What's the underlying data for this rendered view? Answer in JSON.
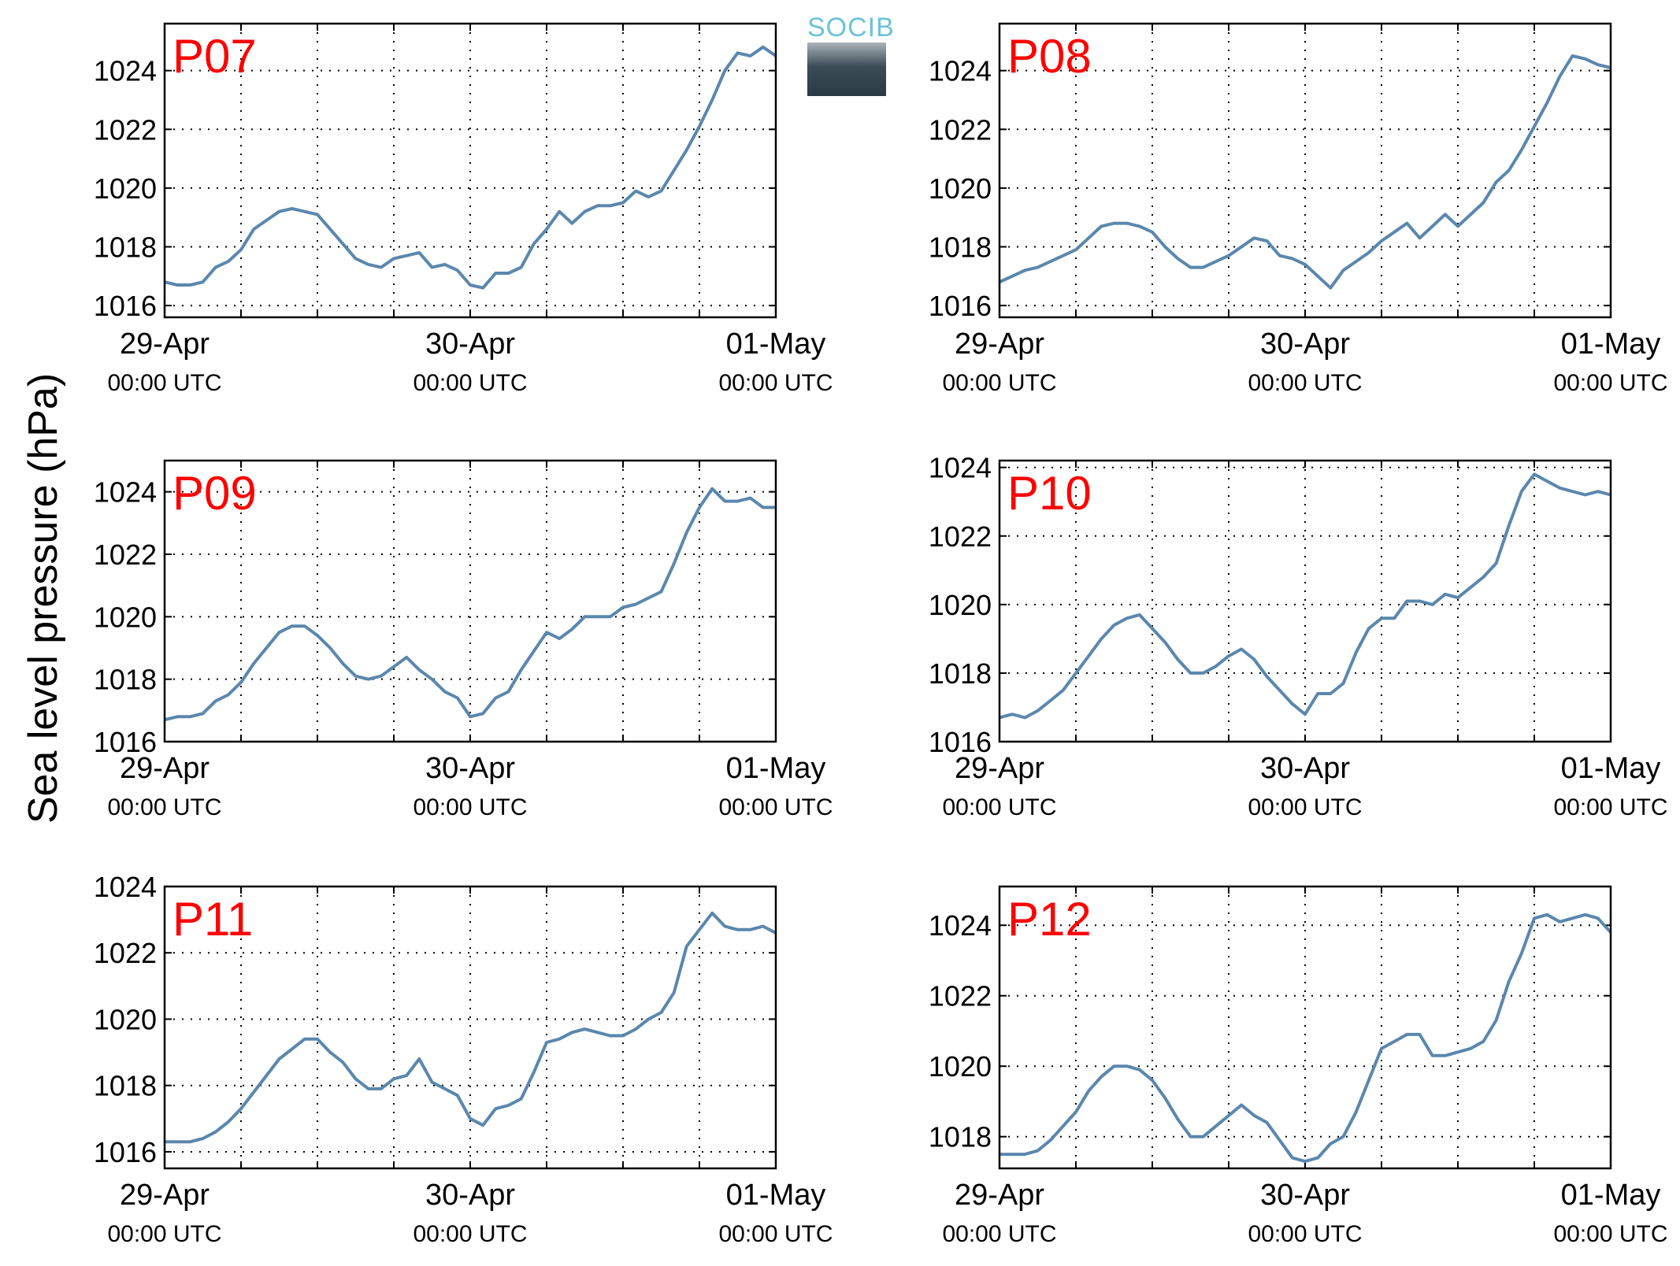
{
  "figure": {
    "ylabel": "Sea level pressure (hPa)",
    "logo_text": "SOCIB",
    "colors": {
      "line": "#5b87ad",
      "panel_label": "#ff0000",
      "grid": "#000000",
      "axes": "#000000"
    }
  },
  "chart_data": [
    {
      "type": "line",
      "title": "P07",
      "xticks": [
        "29-Apr|00:00 UTC",
        "30-Apr|00:00 UTC",
        "01-May|00:00 UTC"
      ],
      "xlim_hours": [
        0,
        48
      ],
      "x_units": "hours since 29-Apr 00:00 UTC",
      "ylim": [
        1015.6,
        1025.6
      ],
      "yticks": [
        1016,
        1018,
        1020,
        1022,
        1024
      ],
      "grid": true,
      "series": [
        {
          "x": [
            0,
            1,
            2,
            3,
            4,
            5,
            6,
            7,
            8,
            9,
            10,
            11,
            12,
            13,
            14,
            15,
            16,
            17,
            18,
            19,
            20,
            21,
            22,
            23,
            24,
            25,
            26,
            27,
            28,
            29,
            30,
            31,
            32,
            33,
            34,
            35,
            36,
            37,
            38,
            39,
            40,
            41,
            42,
            43,
            44,
            45,
            46,
            47,
            48
          ],
          "values": [
            1016.8,
            1016.7,
            1016.7,
            1016.8,
            1017.3,
            1017.5,
            1017.9,
            1018.6,
            1018.9,
            1019.2,
            1019.3,
            1019.2,
            1019.1,
            1018.6,
            1018.1,
            1017.6,
            1017.4,
            1017.3,
            1017.6,
            1017.7,
            1017.8,
            1017.3,
            1017.4,
            1017.2,
            1016.7,
            1016.6,
            1017.1,
            1017.1,
            1017.3,
            1018.1,
            1018.6,
            1019.2,
            1018.8,
            1019.2,
            1019.4,
            1019.4,
            1019.5,
            1019.9,
            1019.7,
            1019.9,
            1020.6,
            1021.3,
            1022.1,
            1023.0,
            1024.0,
            1024.6,
            1024.5,
            1024.8,
            1024.5
          ]
        }
      ]
    },
    {
      "type": "line",
      "title": "P08",
      "xticks": [
        "29-Apr|00:00 UTC",
        "30-Apr|00:00 UTC",
        "01-May|00:00 UTC"
      ],
      "xlim_hours": [
        0,
        48
      ],
      "x_units": "hours since 29-Apr 00:00 UTC",
      "ylim": [
        1015.6,
        1025.6
      ],
      "yticks": [
        1016,
        1018,
        1020,
        1022,
        1024
      ],
      "grid": true,
      "series": [
        {
          "x": [
            0,
            1,
            2,
            3,
            4,
            5,
            6,
            7,
            8,
            9,
            10,
            11,
            12,
            13,
            14,
            15,
            16,
            17,
            18,
            19,
            20,
            21,
            22,
            23,
            24,
            25,
            26,
            27,
            28,
            29,
            30,
            31,
            32,
            33,
            34,
            35,
            36,
            37,
            38,
            39,
            40,
            41,
            42,
            43,
            44,
            45,
            46,
            47,
            48
          ],
          "values": [
            1016.8,
            1017.0,
            1017.2,
            1017.3,
            1017.5,
            1017.7,
            1017.9,
            1018.3,
            1018.7,
            1018.8,
            1018.8,
            1018.7,
            1018.5,
            1018.0,
            1017.6,
            1017.3,
            1017.3,
            1017.5,
            1017.7,
            1018.0,
            1018.3,
            1018.2,
            1017.7,
            1017.6,
            1017.4,
            1017.0,
            1016.6,
            1017.2,
            1017.5,
            1017.8,
            1018.2,
            1018.5,
            1018.8,
            1018.3,
            1018.7,
            1019.1,
            1018.7,
            1019.1,
            1019.5,
            1020.2,
            1020.6,
            1021.3,
            1022.1,
            1022.9,
            1023.8,
            1024.5,
            1024.4,
            1024.2,
            1024.1
          ]
        }
      ]
    },
    {
      "type": "line",
      "title": "P09",
      "xticks": [
        "29-Apr|00:00 UTC",
        "30-Apr|00:00 UTC",
        "01-May|00:00 UTC"
      ],
      "xlim_hours": [
        0,
        48
      ],
      "x_units": "hours since 29-Apr 00:00 UTC",
      "ylim": [
        1016,
        1025
      ],
      "yticks": [
        1016,
        1018,
        1020,
        1022,
        1024
      ],
      "grid": true,
      "series": [
        {
          "x": [
            0,
            1,
            2,
            3,
            4,
            5,
            6,
            7,
            8,
            9,
            10,
            11,
            12,
            13,
            14,
            15,
            16,
            17,
            18,
            19,
            20,
            21,
            22,
            23,
            24,
            25,
            26,
            27,
            28,
            29,
            30,
            31,
            32,
            33,
            34,
            35,
            36,
            37,
            38,
            39,
            40,
            41,
            42,
            43,
            44,
            45,
            46,
            47,
            48
          ],
          "values": [
            1016.7,
            1016.8,
            1016.8,
            1016.9,
            1017.3,
            1017.5,
            1017.9,
            1018.5,
            1019.0,
            1019.5,
            1019.7,
            1019.7,
            1019.4,
            1019.0,
            1018.5,
            1018.1,
            1018.0,
            1018.1,
            1018.4,
            1018.7,
            1018.3,
            1018.0,
            1017.6,
            1017.4,
            1016.8,
            1016.9,
            1017.4,
            1017.6,
            1018.3,
            1018.9,
            1019.5,
            1019.3,
            1019.6,
            1020.0,
            1020.0,
            1020.0,
            1020.3,
            1020.4,
            1020.6,
            1020.8,
            1021.7,
            1022.7,
            1023.5,
            1024.1,
            1023.7,
            1023.7,
            1023.8,
            1023.5,
            1023.5
          ]
        }
      ]
    },
    {
      "type": "line",
      "title": "P10",
      "xticks": [
        "29-Apr|00:00 UTC",
        "30-Apr|00:00 UTC",
        "01-May|00:00 UTC"
      ],
      "xlim_hours": [
        0,
        48
      ],
      "x_units": "hours since 29-Apr 00:00 UTC",
      "ylim": [
        1016,
        1024.2
      ],
      "yticks": [
        1016,
        1018,
        1020,
        1022,
        1024
      ],
      "grid": true,
      "series": [
        {
          "x": [
            0,
            1,
            2,
            3,
            4,
            5,
            6,
            7,
            8,
            9,
            10,
            11,
            12,
            13,
            14,
            15,
            16,
            17,
            18,
            19,
            20,
            21,
            22,
            23,
            24,
            25,
            26,
            27,
            28,
            29,
            30,
            31,
            32,
            33,
            34,
            35,
            36,
            37,
            38,
            39,
            40,
            41,
            42,
            43,
            44,
            45,
            46,
            47,
            48
          ],
          "values": [
            1016.7,
            1016.8,
            1016.7,
            1016.9,
            1017.2,
            1017.5,
            1018.0,
            1018.5,
            1019.0,
            1019.4,
            1019.6,
            1019.7,
            1019.3,
            1018.9,
            1018.4,
            1018.0,
            1018.0,
            1018.2,
            1018.5,
            1018.7,
            1018.4,
            1017.9,
            1017.5,
            1017.1,
            1016.8,
            1017.4,
            1017.4,
            1017.7,
            1018.6,
            1019.3,
            1019.6,
            1019.6,
            1020.1,
            1020.1,
            1020.0,
            1020.3,
            1020.2,
            1020.5,
            1020.8,
            1021.2,
            1022.3,
            1023.3,
            1023.8,
            1023.6,
            1023.4,
            1023.3,
            1023.2,
            1023.3,
            1023.2
          ]
        }
      ]
    },
    {
      "type": "line",
      "title": "P11",
      "xticks": [
        "29-Apr|00:00 UTC",
        "30-Apr|00:00 UTC",
        "01-May|00:00 UTC"
      ],
      "xlim_hours": [
        0,
        48
      ],
      "x_units": "hours since 29-Apr 00:00 UTC",
      "ylim": [
        1015.5,
        1024
      ],
      "yticks": [
        1016,
        1018,
        1020,
        1022,
        1024
      ],
      "grid": true,
      "series": [
        {
          "x": [
            0,
            1,
            2,
            3,
            4,
            5,
            6,
            7,
            8,
            9,
            10,
            11,
            12,
            13,
            14,
            15,
            16,
            17,
            18,
            19,
            20,
            21,
            22,
            23,
            24,
            25,
            26,
            27,
            28,
            29,
            30,
            31,
            32,
            33,
            34,
            35,
            36,
            37,
            38,
            39,
            40,
            41,
            42,
            43,
            44,
            45,
            46,
            47,
            48
          ],
          "values": [
            1016.3,
            1016.3,
            1016.3,
            1016.4,
            1016.6,
            1016.9,
            1017.3,
            1017.8,
            1018.3,
            1018.8,
            1019.1,
            1019.4,
            1019.4,
            1019.0,
            1018.7,
            1018.2,
            1017.9,
            1017.9,
            1018.2,
            1018.3,
            1018.8,
            1018.1,
            1017.9,
            1017.7,
            1017.0,
            1016.8,
            1017.3,
            1017.4,
            1017.6,
            1018.4,
            1019.3,
            1019.4,
            1019.6,
            1019.7,
            1019.6,
            1019.5,
            1019.5,
            1019.7,
            1020.0,
            1020.2,
            1020.8,
            1022.2,
            1022.7,
            1023.2,
            1022.8,
            1022.7,
            1022.7,
            1022.8,
            1022.6
          ]
        }
      ]
    },
    {
      "type": "line",
      "title": "P12",
      "xticks": [
        "29-Apr|00:00 UTC",
        "30-Apr|00:00 UTC",
        "01-May|00:00 UTC"
      ],
      "xlim_hours": [
        0,
        48
      ],
      "x_units": "hours since 29-Apr 00:00 UTC",
      "ylim": [
        1017.1,
        1025.1
      ],
      "yticks": [
        1018,
        1020,
        1022,
        1024
      ],
      "grid": true,
      "series": [
        {
          "x": [
            0,
            1,
            2,
            3,
            4,
            5,
            6,
            7,
            8,
            9,
            10,
            11,
            12,
            13,
            14,
            15,
            16,
            17,
            18,
            19,
            20,
            21,
            22,
            23,
            24,
            25,
            26,
            27,
            28,
            29,
            30,
            31,
            32,
            33,
            34,
            35,
            36,
            37,
            38,
            39,
            40,
            41,
            42,
            43,
            44,
            45,
            46,
            47,
            48
          ],
          "values": [
            1017.5,
            1017.5,
            1017.5,
            1017.6,
            1017.9,
            1018.3,
            1018.7,
            1019.3,
            1019.7,
            1020.0,
            1020.0,
            1019.9,
            1019.6,
            1019.1,
            1018.5,
            1018.0,
            1018.0,
            1018.3,
            1018.6,
            1018.9,
            1018.6,
            1018.4,
            1017.9,
            1017.4,
            1017.3,
            1017.4,
            1017.8,
            1018.0,
            1018.7,
            1019.6,
            1020.5,
            1020.7,
            1020.9,
            1020.9,
            1020.3,
            1020.3,
            1020.4,
            1020.5,
            1020.7,
            1021.3,
            1022.4,
            1023.2,
            1024.2,
            1024.3,
            1024.1,
            1024.2,
            1024.3,
            1024.2,
            1023.8
          ]
        }
      ]
    }
  ]
}
